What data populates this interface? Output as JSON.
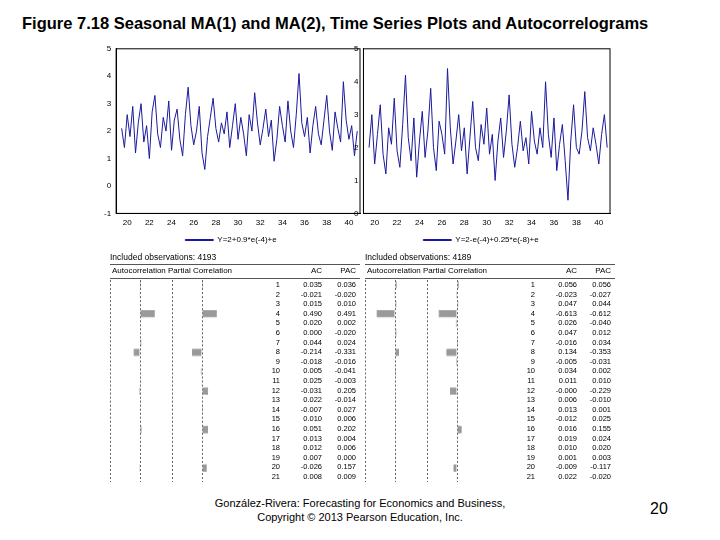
{
  "title": "Figure 7.18  Seasonal MA(1) and MA(2), Time Series Plots and Autocorrelograms",
  "chart_data": [
    {
      "type": "line",
      "x": [
        19.5,
        19.75,
        20,
        20.25,
        20.5,
        20.75,
        21,
        21.25,
        21.5,
        21.75,
        22,
        22.25,
        22.5,
        22.75,
        23,
        23.25,
        23.5,
        23.75,
        24,
        24.25,
        24.5,
        24.75,
        25,
        25.25,
        25.5,
        25.75,
        26,
        26.25,
        26.5,
        26.75,
        27,
        27.25,
        27.5,
        27.75,
        28,
        28.25,
        28.5,
        28.75,
        29,
        29.25,
        29.5,
        29.75,
        30,
        30.25,
        30.5,
        30.75,
        31,
        31.25,
        31.5,
        31.75,
        32,
        32.25,
        32.5,
        32.75,
        33,
        33.25,
        33.5,
        33.75,
        34,
        34.25,
        34.5,
        34.75,
        35,
        35.25,
        35.5,
        35.75,
        36,
        36.25,
        36.5,
        36.75,
        37,
        37.25,
        37.5,
        37.75,
        38,
        38.25,
        38.5,
        38.75,
        39,
        39.25,
        39.5,
        39.75,
        40,
        40.25,
        40.5,
        40.75
      ],
      "series": [
        {
          "name": "Y=2+0.9*e(-4)+e",
          "color": "#1a1a9c",
          "values": [
            2.1,
            1.4,
            2.6,
            1.8,
            2.9,
            1.2,
            2.3,
            3.0,
            1.6,
            2.2,
            1.0,
            2.7,
            3.3,
            1.9,
            1.4,
            2.5,
            2.0,
            3.1,
            1.3,
            2.4,
            2.8,
            1.7,
            1.1,
            2.6,
            3.6,
            2.2,
            1.5,
            2.0,
            2.9,
            1.2,
            0.6,
            1.8,
            2.5,
            3.2,
            2.1,
            1.6,
            2.3,
            1.9,
            2.7,
            1.4,
            2.2,
            3.0,
            1.7,
            2.5,
            1.9,
            1.1,
            2.6,
            2.0,
            3.4,
            2.3,
            1.5,
            2.1,
            2.8,
            1.8,
            2.4,
            0.9,
            1.7,
            2.9,
            2.2,
            1.6,
            3.1,
            2.0,
            1.4,
            2.6,
            4.1,
            2.3,
            1.8,
            2.5,
            1.2,
            2.2,
            2.9,
            1.9,
            1.5,
            2.4,
            3.3,
            2.0,
            1.3,
            2.7,
            2.1,
            1.6,
            3.8,
            2.4,
            1.7,
            2.2,
            1.1,
            2.0
          ]
        }
      ],
      "xlim": [
        19,
        41
      ],
      "xticks": [
        20,
        22,
        24,
        26,
        28,
        30,
        32,
        34,
        36,
        38,
        40
      ],
      "ylim": [
        -1,
        5
      ],
      "yticks": [
        -1,
        0,
        1,
        2,
        3,
        4,
        5
      ],
      "grid": false,
      "legend": "bottom"
    },
    {
      "type": "line",
      "x": [
        19.5,
        19.75,
        20,
        20.25,
        20.5,
        20.75,
        21,
        21.25,
        21.5,
        21.75,
        22,
        22.25,
        22.5,
        22.75,
        23,
        23.25,
        23.5,
        23.75,
        24,
        24.25,
        24.5,
        24.75,
        25,
        25.25,
        25.5,
        25.75,
        26,
        26.25,
        26.5,
        26.75,
        27,
        27.25,
        27.5,
        27.75,
        28,
        28.25,
        28.5,
        28.75,
        29,
        29.25,
        29.5,
        29.75,
        30,
        30.25,
        30.5,
        30.75,
        31,
        31.25,
        31.5,
        31.75,
        32,
        32.25,
        32.5,
        32.75,
        33,
        33.25,
        33.5,
        33.75,
        34,
        34.25,
        34.5,
        34.75,
        35,
        35.25,
        35.5,
        35.75,
        36,
        36.25,
        36.5,
        36.75,
        37,
        37.25,
        37.5,
        37.75,
        38,
        38.25,
        38.5,
        38.75,
        39,
        39.25,
        39.5,
        39.75,
        40,
        40.25,
        40.5,
        40.75
      ],
      "series": [
        {
          "name": "Y=2-e(-4)+0.25*e(-8)+e",
          "color": "#1a1a9c",
          "values": [
            2.0,
            3.0,
            1.5,
            2.4,
            3.3,
            1.8,
            1.2,
            2.6,
            2.1,
            3.5,
            1.9,
            1.4,
            2.7,
            4.2,
            2.3,
            1.6,
            2.9,
            1.1,
            2.2,
            3.1,
            1.7,
            2.5,
            3.8,
            2.0,
            1.3,
            2.8,
            2.4,
            1.8,
            4.4,
            2.6,
            1.5,
            2.2,
            3.0,
            1.9,
            2.6,
            1.2,
            2.3,
            3.4,
            2.0,
            1.6,
            2.7,
            2.1,
            3.2,
            1.8,
            2.4,
            1.0,
            2.2,
            2.9,
            1.7,
            2.5,
            3.6,
            2.1,
            1.4,
            2.0,
            2.8,
            1.9,
            2.3,
            1.5,
            3.1,
            2.2,
            1.8,
            2.6,
            2.0,
            4.0,
            2.4,
            1.7,
            2.9,
            1.3,
            2.1,
            2.7,
            1.6,
            0.4,
            2.2,
            3.3,
            2.0,
            1.8,
            2.5,
            3.7,
            2.3,
            1.9,
            2.6,
            2.1,
            1.5,
            2.4,
            3.0,
            2.0
          ]
        }
      ],
      "xlim": [
        19,
        41
      ],
      "xticks": [
        20,
        22,
        24,
        26,
        28,
        30,
        32,
        34,
        36,
        38,
        40
      ],
      "ylim": [
        0,
        5
      ],
      "yticks": [
        0,
        1,
        2,
        3,
        4,
        5
      ],
      "grid": false,
      "legend": "bottom"
    },
    {
      "type": "bar",
      "orientation": "horizontal",
      "title": "Included observations: 4193",
      "columns": [
        "Autocorrelation",
        "Partial Correlation"
      ],
      "categories": [
        1,
        2,
        3,
        4,
        5,
        6,
        7,
        8,
        9,
        10,
        11,
        12,
        13,
        14,
        15,
        16,
        17,
        18,
        19,
        20,
        21
      ],
      "series": [
        {
          "name": "AC",
          "color": "#999999",
          "values": [
            0.035,
            -0.021,
            0.015,
            0.49,
            0.02,
            0,
            0.044,
            -0.214,
            -0.018,
            0.005,
            0.025,
            -0.031,
            0.022,
            -0.007,
            0.01,
            0.051,
            0.013,
            0.012,
            0.007,
            -0.026,
            0.008
          ],
          "value_labels": [
            "0.035",
            "-0.021",
            "0.015",
            "0.490",
            "0.020",
            "0.000",
            "0.044",
            "-0.214",
            "-0.018",
            "0.005",
            "0.025",
            "-0.031",
            "0.022",
            "-0.007",
            "0.010",
            "0.051",
            "0.013",
            "0.012",
            "0.007",
            "-0.026",
            "0.008"
          ]
        },
        {
          "name": "PAC",
          "color": "#999999",
          "values": [
            0.036,
            -0.02,
            0.01,
            0.491,
            0.002,
            -0.02,
            0.024,
            -0.331,
            -0.016,
            -0.041,
            -0.003,
            0.205,
            -0.014,
            0.027,
            0.006,
            0.202,
            0.004,
            0.006,
            0,
            0.157,
            0.009
          ],
          "value_labels": [
            "0.036",
            "-0.020",
            "0.010",
            "0.491",
            "0.002",
            "-0.020",
            "0.024",
            "-0.331",
            "-0.016",
            "-0.041",
            "-0.003",
            "0.205",
            "-0.014",
            "0.027",
            "0.006",
            "0.202",
            "0.004",
            "0.006",
            "0.000",
            "0.157",
            "0.009"
          ]
        }
      ],
      "xlim": [
        -1,
        1
      ],
      "xticks": [
        -1,
        0,
        1
      ],
      "grid": true,
      "tick_labels": false
    },
    {
      "type": "bar",
      "orientation": "horizontal",
      "title": "Included observations: 4189",
      "columns": [
        "Autocorrelation",
        "Partial Correlation"
      ],
      "categories": [
        1,
        2,
        3,
        4,
        5,
        6,
        7,
        8,
        9,
        10,
        11,
        12,
        13,
        14,
        15,
        16,
        17,
        18,
        19,
        20,
        21
      ],
      "series": [
        {
          "name": "AC",
          "color": "#999999",
          "values": [
            0.056,
            -0.023,
            0.047,
            -0.613,
            0.026,
            0.047,
            -0.016,
            0.134,
            -0.005,
            0.034,
            0.011,
            0,
            0.006,
            0.013,
            -0.012,
            0.016,
            0.019,
            0.01,
            0.001,
            -0.009,
            0.022
          ],
          "value_labels": [
            "0.056",
            "-0.023",
            "0.047",
            "-0.613",
            "0.026",
            "0.047",
            "-0.016",
            "0.134",
            "-0.005",
            "0.034",
            "0.011",
            "-0.000",
            "0.006",
            "0.013",
            "-0.012",
            "0.016",
            "0.019",
            "0.010",
            "0.001",
            "-0.009",
            "0.022"
          ]
        },
        {
          "name": "PAC",
          "color": "#999999",
          "values": [
            0.056,
            -0.027,
            0.044,
            -0.612,
            -0.04,
            0.012,
            0.034,
            -0.353,
            -0.031,
            0.002,
            0.01,
            -0.229,
            -0.01,
            0.001,
            0.025,
            0.155,
            0.024,
            0.02,
            0.003,
            -0.117,
            -0.02
          ],
          "value_labels": [
            "0.056",
            "-0.027",
            "0.044",
            "-0.612",
            "-0.040",
            "0.012",
            "0.034",
            "-0.353",
            "-0.031",
            "0.002",
            "0.010",
            "-0.229",
            "-0.010",
            "0.001",
            "0.025",
            "0.155",
            "0.024",
            "0.020",
            "0.003",
            "-0.117",
            "-0.020"
          ]
        }
      ],
      "xlim": [
        -1,
        1
      ],
      "xticks": [
        -1,
        0,
        1
      ],
      "grid": true,
      "tick_labels": false
    }
  ],
  "footer": [
    "González-Rivera: Forecasting for Economics and Business,",
    "Copyright © 2013 Pearson Education, Inc."
  ],
  "page": 20
}
